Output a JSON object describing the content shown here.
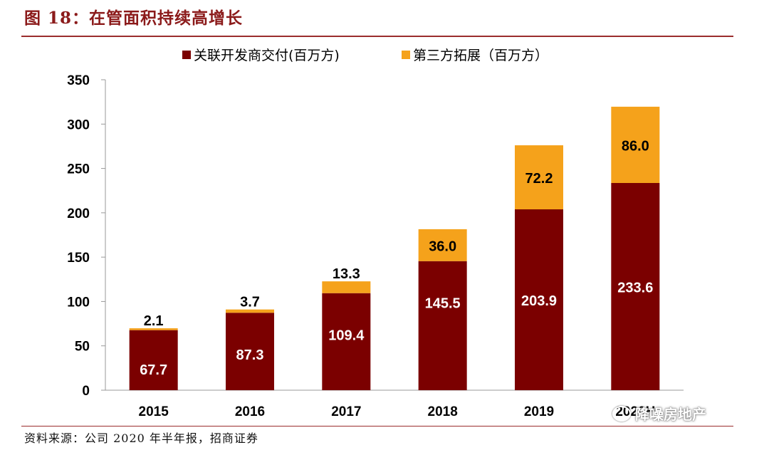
{
  "header": {
    "title": "图 18：在管面积持续高增长"
  },
  "footer": {
    "source": "资料来源：公司 2020 年半年报，招商证券",
    "watermark": "降噪房地产"
  },
  "colors": {
    "series1": "#7B0000",
    "series2": "#F5A21B",
    "accent": "#8B1A1A"
  },
  "chart_data": {
    "type": "bar",
    "stacked": true,
    "categories": [
      "2015",
      "2016",
      "2017",
      "2018",
      "2019",
      "2020H"
    ],
    "series": [
      {
        "name": "关联开发商交付(百万方)",
        "values": [
          67.7,
          87.3,
          109.4,
          145.5,
          203.9,
          233.6
        ],
        "labels": [
          "67.7",
          "87.3",
          "109.4",
          "145.5",
          "203.9",
          "233.6"
        ],
        "color": "#7B0000"
      },
      {
        "name": "第三方拓展（百万方）",
        "values": [
          2.1,
          3.7,
          13.3,
          36.0,
          72.2,
          86.0
        ],
        "labels": [
          "2.1",
          "3.7",
          "13.3",
          "36.0",
          "72.2",
          "86.0"
        ],
        "color": "#F5A21B"
      }
    ],
    "ylim": [
      0,
      350
    ],
    "yticks": [
      "0",
      "50",
      "100",
      "150",
      "200",
      "250",
      "300",
      "350"
    ],
    "legend_position": "top-center",
    "grid": false
  }
}
